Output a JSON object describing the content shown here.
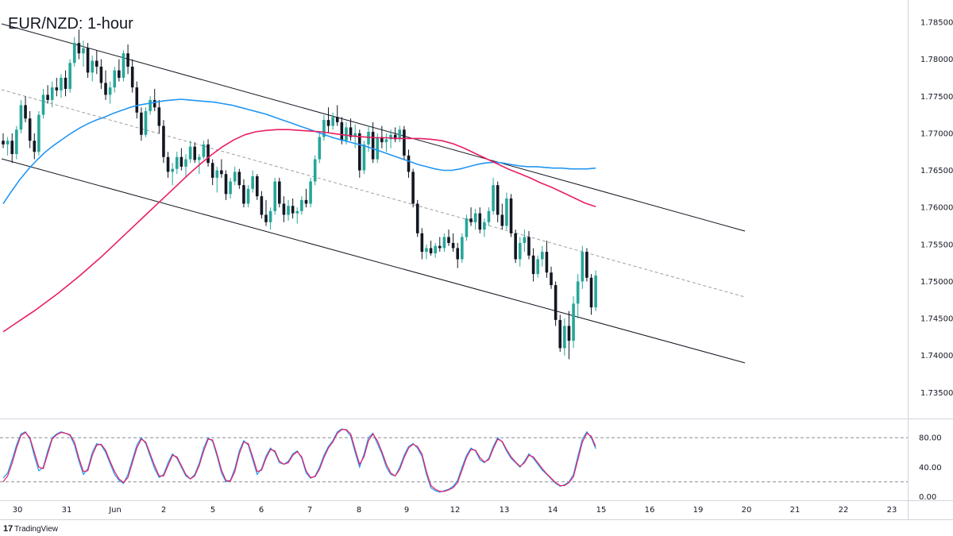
{
  "chart_data": {
    "type": "candlestick",
    "title": "EUR/NZD: 1-hour",
    "brand": "TradingView",
    "colors": {
      "up": "#26a69a",
      "down": "#131722",
      "ma_fast": "#2196f3",
      "ma_slow": "#e91e63",
      "rsi_k": "#2196f3",
      "rsi_d": "#e91e63",
      "channel": "#131722",
      "midline": "#9e9e9e"
    },
    "price_axis": {
      "ticks": [
        "1.78500",
        "1.78000",
        "1.77500",
        "1.77000",
        "1.76500",
        "1.76000",
        "1.75500",
        "1.75000",
        "1.74500",
        "1.74000",
        "1.73500"
      ],
      "ylim": [
        1.7315,
        1.788
      ]
    },
    "time_axis": {
      "ticks": [
        "30",
        "31",
        "Jun",
        "2",
        "5",
        "6",
        "7",
        "8",
        "9",
        "12",
        "13",
        "14",
        "15",
        "16",
        "19",
        "20",
        "21",
        "22",
        "23"
      ]
    },
    "oscillator": {
      "ticks": [
        "80.00",
        "40.00",
        "0.00"
      ],
      "levels": [
        80,
        20
      ],
      "ylim": [
        -5,
        105
      ]
    },
    "candles": [
      [
        1.769,
        1.77,
        1.768,
        1.7685
      ],
      [
        1.7685,
        1.7695,
        1.767,
        1.769
      ],
      [
        1.769,
        1.77,
        1.766,
        1.7672
      ],
      [
        1.7672,
        1.771,
        1.7665,
        1.7705
      ],
      [
        1.7705,
        1.7745,
        1.77,
        1.7738
      ],
      [
        1.7738,
        1.775,
        1.7715,
        1.772
      ],
      [
        1.772,
        1.773,
        1.768,
        1.769
      ],
      [
        1.769,
        1.77,
        1.7665,
        1.7675
      ],
      [
        1.7675,
        1.773,
        1.767,
        1.7725
      ],
      [
        1.7725,
        1.776,
        1.772,
        1.7752
      ],
      [
        1.7752,
        1.7765,
        1.774,
        1.7745
      ],
      [
        1.7745,
        1.777,
        1.7735,
        1.7762
      ],
      [
        1.7762,
        1.7775,
        1.775,
        1.7758
      ],
      [
        1.7758,
        1.778,
        1.7748,
        1.7775
      ],
      [
        1.7775,
        1.7785,
        1.775,
        1.776
      ],
      [
        1.776,
        1.78,
        1.7755,
        1.7795
      ],
      [
        1.7795,
        1.783,
        1.779,
        1.7822
      ],
      [
        1.7822,
        1.784,
        1.78,
        1.7808
      ],
      [
        1.7808,
        1.7825,
        1.779,
        1.7815
      ],
      [
        1.7815,
        1.7822,
        1.7775,
        1.7782
      ],
      [
        1.7782,
        1.7805,
        1.777,
        1.7798
      ],
      [
        1.7798,
        1.7812,
        1.778,
        1.779
      ],
      [
        1.779,
        1.78,
        1.776,
        1.7768
      ],
      [
        1.7768,
        1.7785,
        1.7745,
        1.7752
      ],
      [
        1.7752,
        1.777,
        1.774,
        1.7762
      ],
      [
        1.7762,
        1.779,
        1.7755,
        1.7785
      ],
      [
        1.7785,
        1.78,
        1.777,
        1.7775
      ],
      [
        1.7775,
        1.7812,
        1.777,
        1.7808
      ],
      [
        1.7808,
        1.782,
        1.778,
        1.779
      ],
      [
        1.779,
        1.78,
        1.7755,
        1.7762
      ],
      [
        1.7762,
        1.777,
        1.772,
        1.7728
      ],
      [
        1.7728,
        1.7735,
        1.769,
        1.7698
      ],
      [
        1.7698,
        1.7735,
        1.7695,
        1.773
      ],
      [
        1.773,
        1.775,
        1.7725,
        1.7745
      ],
      [
        1.7745,
        1.776,
        1.773,
        1.7735
      ],
      [
        1.7735,
        1.7745,
        1.77,
        1.771
      ],
      [
        1.771,
        1.7718,
        1.766,
        1.7668
      ],
      [
        1.7668,
        1.7675,
        1.764,
        1.7648
      ],
      [
        1.7648,
        1.766,
        1.763,
        1.7652
      ],
      [
        1.7652,
        1.7675,
        1.7645,
        1.7668
      ],
      [
        1.7668,
        1.768,
        1.765,
        1.7655
      ],
      [
        1.7655,
        1.7672,
        1.764,
        1.7665
      ],
      [
        1.7665,
        1.769,
        1.766,
        1.7682
      ],
      [
        1.7682,
        1.7688,
        1.766,
        1.7664
      ],
      [
        1.7664,
        1.7672,
        1.7645,
        1.7668
      ],
      [
        1.7668,
        1.769,
        1.7665,
        1.7685
      ],
      [
        1.7685,
        1.7692,
        1.7655,
        1.766
      ],
      [
        1.766,
        1.7665,
        1.763,
        1.764
      ],
      [
        1.764,
        1.7655,
        1.762,
        1.765
      ],
      [
        1.765,
        1.7665,
        1.764,
        1.7645
      ],
      [
        1.7645,
        1.765,
        1.761,
        1.7618
      ],
      [
        1.7618,
        1.764,
        1.7612,
        1.7635
      ],
      [
        1.7635,
        1.7655,
        1.763,
        1.7648
      ],
      [
        1.7648,
        1.7652,
        1.7625,
        1.763
      ],
      [
        1.763,
        1.7638,
        1.76,
        1.7605
      ],
      [
        1.7605,
        1.763,
        1.76,
        1.7625
      ],
      [
        1.7625,
        1.765,
        1.762,
        1.7642
      ],
      [
        1.7642,
        1.7645,
        1.761,
        1.7615
      ],
      [
        1.7615,
        1.7622,
        1.7585,
        1.759
      ],
      [
        1.759,
        1.761,
        1.7575,
        1.758
      ],
      [
        1.758,
        1.76,
        1.757,
        1.7595
      ],
      [
        1.7595,
        1.764,
        1.759,
        1.7635
      ],
      [
        1.7635,
        1.764,
        1.76,
        1.7605
      ],
      [
        1.7605,
        1.7615,
        1.758,
        1.759
      ],
      [
        1.759,
        1.761,
        1.7582,
        1.7602
      ],
      [
        1.7602,
        1.7612,
        1.7585,
        1.7592
      ],
      [
        1.7592,
        1.76,
        1.7578,
        1.7595
      ],
      [
        1.7595,
        1.7615,
        1.759,
        1.761
      ],
      [
        1.761,
        1.7625,
        1.76,
        1.7605
      ],
      [
        1.7605,
        1.764,
        1.76,
        1.7635
      ],
      [
        1.7635,
        1.767,
        1.763,
        1.7665
      ],
      [
        1.7665,
        1.77,
        1.766,
        1.7695
      ],
      [
        1.7695,
        1.7725,
        1.769,
        1.7718
      ],
      [
        1.7718,
        1.7735,
        1.77,
        1.771
      ],
      [
        1.771,
        1.7728,
        1.7705,
        1.7722
      ],
      [
        1.7722,
        1.7738,
        1.771,
        1.7715
      ],
      [
        1.7715,
        1.7722,
        1.7685,
        1.769
      ],
      [
        1.769,
        1.7715,
        1.7685,
        1.7708
      ],
      [
        1.7708,
        1.772,
        1.769,
        1.7695
      ],
      [
        1.7695,
        1.7712,
        1.768,
        1.77
      ],
      [
        1.77,
        1.7705,
        1.764,
        1.765
      ],
      [
        1.765,
        1.769,
        1.7645,
        1.7685
      ],
      [
        1.7685,
        1.771,
        1.7675,
        1.7702
      ],
      [
        1.7702,
        1.7715,
        1.766,
        1.7665
      ],
      [
        1.7665,
        1.77,
        1.766,
        1.7695
      ],
      [
        1.7695,
        1.771,
        1.768,
        1.7688
      ],
      [
        1.7688,
        1.77,
        1.7675,
        1.7692
      ],
      [
        1.7692,
        1.7705,
        1.768,
        1.7698
      ],
      [
        1.7698,
        1.7708,
        1.7688,
        1.7692
      ],
      [
        1.7692,
        1.771,
        1.7688,
        1.7705
      ],
      [
        1.7705,
        1.771,
        1.7665,
        1.767
      ],
      [
        1.767,
        1.7678,
        1.764,
        1.7648
      ],
      [
        1.7648,
        1.7652,
        1.76,
        1.7605
      ],
      [
        1.7605,
        1.761,
        1.756,
        1.7565
      ],
      [
        1.7565,
        1.7572,
        1.753,
        1.754
      ],
      [
        1.754,
        1.755,
        1.753,
        1.7545
      ],
      [
        1.7545,
        1.7555,
        1.7535,
        1.7538
      ],
      [
        1.7538,
        1.7552,
        1.7532,
        1.7548
      ],
      [
        1.7548,
        1.756,
        1.754,
        1.7545
      ],
      [
        1.7545,
        1.7565,
        1.754,
        1.756
      ],
      [
        1.756,
        1.757,
        1.7548,
        1.7552
      ],
      [
        1.7552,
        1.7565,
        1.754,
        1.7545
      ],
      [
        1.7545,
        1.7552,
        1.7518,
        1.753
      ],
      [
        1.753,
        1.7565,
        1.7525,
        1.756
      ],
      [
        1.756,
        1.759,
        1.7555,
        1.7585
      ],
      [
        1.7585,
        1.76,
        1.7575,
        1.758
      ],
      [
        1.758,
        1.7598,
        1.757,
        1.7592
      ],
      [
        1.7592,
        1.76,
        1.7565,
        1.757
      ],
      [
        1.757,
        1.7585,
        1.756,
        1.758
      ],
      [
        1.758,
        1.76,
        1.7575,
        1.7595
      ],
      [
        1.7595,
        1.764,
        1.759,
        1.763
      ],
      [
        1.763,
        1.7635,
        1.758,
        1.759
      ],
      [
        1.759,
        1.7605,
        1.757,
        1.7575
      ],
      [
        1.7575,
        1.762,
        1.757,
        1.7612
      ],
      [
        1.7612,
        1.7618,
        1.756,
        1.7565
      ],
      [
        1.7565,
        1.757,
        1.7525,
        1.753
      ],
      [
        1.753,
        1.756,
        1.752,
        1.7552
      ],
      [
        1.7552,
        1.757,
        1.754,
        1.756
      ],
      [
        1.756,
        1.7568,
        1.753,
        1.7535
      ],
      [
        1.7535,
        1.7545,
        1.75,
        1.751
      ],
      [
        1.751,
        1.7535,
        1.7505,
        1.753
      ],
      [
        1.753,
        1.7548,
        1.752,
        1.754
      ],
      [
        1.754,
        1.7555,
        1.7505,
        1.7512
      ],
      [
        1.7512,
        1.752,
        1.749,
        1.7495
      ],
      [
        1.7495,
        1.75,
        1.744,
        1.7448
      ],
      [
        1.7448,
        1.7455,
        1.7405,
        1.741
      ],
      [
        1.741,
        1.745,
        1.74,
        1.744
      ],
      [
        1.744,
        1.746,
        1.7395,
        1.742
      ],
      [
        1.742,
        1.748,
        1.741,
        1.747
      ],
      [
        1.747,
        1.751,
        1.745,
        1.75
      ],
      [
        1.75,
        1.7548,
        1.749,
        1.754
      ],
      [
        1.754,
        1.7545,
        1.75,
        1.7505
      ],
      [
        1.7505,
        1.751,
        1.7455,
        1.7465
      ],
      [
        1.7465,
        1.7515,
        1.746,
        1.7508
      ]
    ],
    "ma_fast": [
      1.7605,
      1.7622,
      1.7638,
      1.7652,
      1.7664,
      1.7675,
      1.7684,
      1.7692,
      1.77,
      1.7707,
      1.7713,
      1.7718,
      1.7722,
      1.7727,
      1.7731,
      1.7735,
      1.7738,
      1.774,
      1.7742,
      1.7744,
      1.7745,
      1.7746,
      1.7745,
      1.7744,
      1.7743,
      1.7742,
      1.774,
      1.7738,
      1.7735,
      1.7732,
      1.7729,
      1.7726,
      1.7722,
      1.7718,
      1.7714,
      1.771,
      1.7706,
      1.7702,
      1.7698,
      1.7694,
      1.7691,
      1.7688,
      1.7685,
      1.7682,
      1.7678,
      1.7674,
      1.767,
      1.7666,
      1.7662,
      1.7658,
      1.7655,
      1.7652,
      1.765,
      1.765,
      1.7652,
      1.7655,
      1.7658,
      1.766,
      1.7661,
      1.766,
      1.7658,
      1.7656,
      1.7655,
      1.7655,
      1.7654,
      1.7653,
      1.7653,
      1.7652,
      1.7652,
      1.7652,
      1.7653
    ],
    "ma_slow": [
      1.7432,
      1.7442,
      1.7452,
      1.7462,
      1.7473,
      1.7484,
      1.7496,
      1.7508,
      1.7521,
      1.7534,
      1.7548,
      1.7562,
      1.7576,
      1.759,
      1.7604,
      1.7618,
      1.7632,
      1.7646,
      1.7659,
      1.7671,
      1.7682,
      1.7691,
      1.7698,
      1.7702,
      1.7704,
      1.7705,
      1.7705,
      1.7704,
      1.7703,
      1.7702,
      1.77,
      1.7698,
      1.7696,
      1.7695,
      1.7694,
      1.7694,
      1.7693,
      1.7693,
      1.7693,
      1.7692,
      1.769,
      1.7686,
      1.768,
      1.7673,
      1.7666,
      1.7659,
      1.7652,
      1.7646,
      1.764,
      1.7633,
      1.7627,
      1.762,
      1.7613,
      1.7606,
      1.7601
    ],
    "stoch_k": [
      25,
      32,
      50,
      70,
      85,
      88,
      78,
      55,
      35,
      40,
      62,
      80,
      85,
      88,
      86,
      83,
      70,
      48,
      30,
      38,
      60,
      72,
      70,
      60,
      45,
      30,
      22,
      18,
      30,
      50,
      70,
      80,
      72,
      55,
      38,
      26,
      30,
      46,
      58,
      52,
      40,
      28,
      24,
      30,
      45,
      66,
      80,
      75,
      55,
      32,
      20,
      22,
      38,
      62,
      76,
      70,
      50,
      30,
      38,
      55,
      66,
      60,
      46,
      44,
      48,
      58,
      62,
      52,
      32,
      25,
      28,
      40,
      56,
      68,
      76,
      88,
      92,
      90,
      82,
      60,
      40,
      58,
      80,
      86,
      72,
      58,
      40,
      30,
      28,
      40,
      56,
      68,
      72,
      66,
      55,
      30,
      12,
      8,
      6,
      8,
      10,
      14,
      22,
      40,
      56,
      66,
      62,
      50,
      46,
      52,
      68,
      80,
      74,
      62,
      52,
      46,
      40,
      48,
      58,
      52,
      44,
      36,
      30,
      24,
      18,
      14,
      16,
      20,
      30,
      55,
      78,
      88,
      80,
      65
    ],
    "stoch_d": [
      20,
      28,
      45,
      66,
      83,
      87,
      80,
      60,
      40,
      38,
      58,
      78,
      84,
      87,
      86,
      84,
      74,
      52,
      34,
      35,
      56,
      70,
      71,
      63,
      48,
      34,
      24,
      19,
      26,
      46,
      66,
      78,
      74,
      58,
      42,
      28,
      28,
      42,
      56,
      54,
      42,
      30,
      24,
      28,
      42,
      62,
      78,
      77,
      58,
      36,
      22,
      21,
      34,
      58,
      74,
      72,
      54,
      34,
      36,
      52,
      64,
      62,
      48,
      44,
      46,
      56,
      61,
      54,
      35,
      26,
      27,
      37,
      53,
      66,
      74,
      86,
      91,
      91,
      85,
      64,
      44,
      54,
      76,
      85,
      76,
      61,
      44,
      32,
      28,
      37,
      53,
      66,
      71,
      68,
      58,
      34,
      15,
      10,
      7,
      7,
      9,
      12,
      19,
      36,
      53,
      64,
      63,
      53,
      47,
      50,
      65,
      78,
      75,
      64,
      54,
      47,
      41,
      46,
      56,
      54,
      46,
      38,
      31,
      25,
      19,
      15,
      15,
      19,
      27,
      50,
      74,
      86,
      82,
      68
    ]
  }
}
